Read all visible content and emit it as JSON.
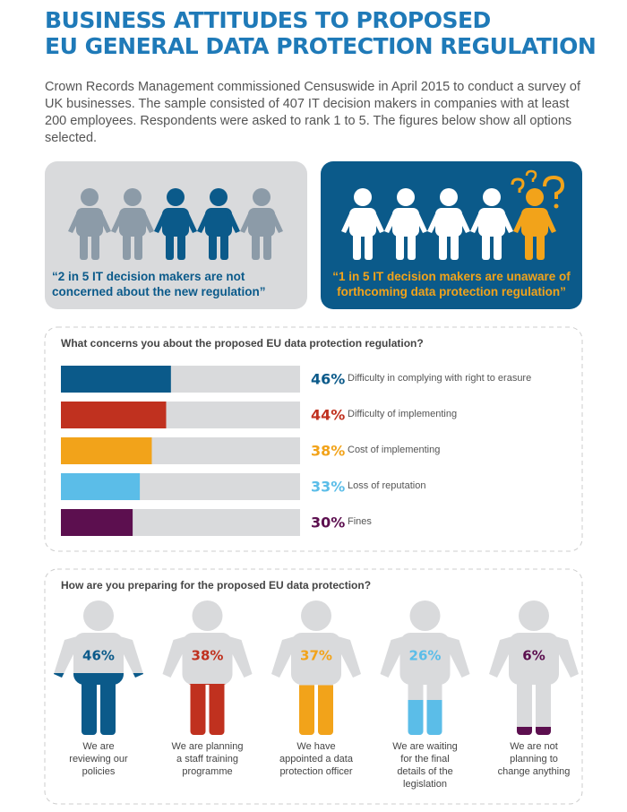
{
  "title": [
    "BUSINESS ATTITUDES TO PROPOSED",
    "EU GENERAL DATA PROTECTION REGULATION"
  ],
  "intro": "Crown Records Management commissioned Censuswide in April 2015 to conduct a survey of UK businesses. The sample consisted of 407 IT decision makers in companies with at least 200 employees.  Respondents were asked to rank 1 to 5. The figures below show all options selected.",
  "callouts": [
    "“2 in 5 IT decision makers are not concerned about the new regulation”",
    "“1 in 5 IT decision makers are unaware of forthcoming data protection regulation”"
  ],
  "chart_data": [
    {
      "type": "hbar",
      "title": "What concerns you about the proposed EU data protection regulation?",
      "categories": [
        "Difficulty in complying with right to erasure",
        "Difficulty of implementing",
        "Cost of implementing",
        "Loss of reputation",
        "Fines"
      ],
      "values": [
        46,
        44,
        38,
        33,
        30
      ],
      "value_labels": [
        "46%",
        "44%",
        "38%",
        "33%",
        "30%"
      ],
      "colors": [
        "#0b5a8a",
        "#c0311f",
        "#f2a31a",
        "#5bbde8",
        "#5c0f4f"
      ],
      "xlim": [
        0,
        100
      ]
    },
    {
      "type": "pictogram",
      "title": "How are you preparing for the proposed EU data protection?",
      "categories": [
        "We are reviewing our policies",
        "We are planning a staff training programme",
        "We have appointed a data protection officer",
        "We are waiting for the final details of the legislation",
        "We are not planning to change anything"
      ],
      "values": [
        46,
        38,
        37,
        26,
        6
      ],
      "value_labels": [
        "46%",
        "38%",
        "37%",
        "26%",
        "6%"
      ],
      "colors": [
        "#0b5a8a",
        "#c0311f",
        "#f2a31a",
        "#5bbde8",
        "#5c0f4f"
      ],
      "ylim": [
        0,
        100
      ]
    }
  ]
}
